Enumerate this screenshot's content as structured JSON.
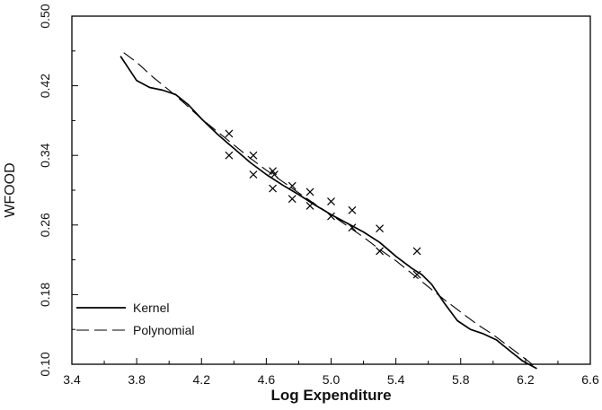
{
  "chart_data": {
    "type": "line",
    "title": "",
    "xlabel": "Log Expenditure",
    "ylabel": "WFOOD",
    "xlim": [
      3.4,
      6.6
    ],
    "ylim": [
      0.1,
      0.5
    ],
    "xticks": [
      3.4,
      3.8,
      4.2,
      4.6,
      5.0,
      5.4,
      5.8,
      6.2,
      6.6
    ],
    "xtick_labels": [
      "3.4",
      "3.8",
      "4.2",
      "4.6",
      "5.0",
      "5.4",
      "5.8",
      "6.2",
      "6.6"
    ],
    "yticks": [
      0.1,
      0.18,
      0.26,
      0.34,
      0.42,
      0.5
    ],
    "ytick_labels": [
      "0.10",
      "0.18",
      "0.26",
      "0.34",
      "0.42",
      "0.50"
    ],
    "grid": false,
    "legend_position": "bottom-left",
    "series": [
      {
        "name": "Kernel",
        "style": "solid",
        "x": [
          3.7,
          3.75,
          3.8,
          3.88,
          3.96,
          4.04,
          4.12,
          4.2,
          4.3,
          4.4,
          4.5,
          4.6,
          4.7,
          4.8,
          4.9,
          5.0,
          5.1,
          5.2,
          5.3,
          5.4,
          5.5,
          5.56,
          5.62,
          5.7,
          5.78,
          5.86,
          5.94,
          6.02,
          6.1,
          6.18,
          6.27
        ],
        "y": [
          0.454,
          0.44,
          0.426,
          0.418,
          0.415,
          0.41,
          0.398,
          0.382,
          0.364,
          0.348,
          0.332,
          0.318,
          0.306,
          0.295,
          0.283,
          0.272,
          0.262,
          0.252,
          0.24,
          0.224,
          0.21,
          0.203,
          0.192,
          0.17,
          0.15,
          0.14,
          0.135,
          0.128,
          0.116,
          0.104,
          0.095
        ]
      },
      {
        "name": "Polynomial",
        "style": "dashed",
        "x": [
          3.72,
          3.8,
          3.9,
          4.0,
          4.1,
          4.2,
          4.3,
          4.4,
          4.5,
          4.6,
          4.7,
          4.8,
          4.9,
          5.0,
          5.1,
          5.2,
          5.3,
          5.4,
          5.5,
          5.6,
          5.7,
          5.8,
          5.9,
          6.0,
          6.1,
          6.2,
          6.26
        ],
        "y": [
          0.458,
          0.447,
          0.43,
          0.415,
          0.399,
          0.382,
          0.367,
          0.352,
          0.337,
          0.323,
          0.31,
          0.297,
          0.284,
          0.272,
          0.259,
          0.246,
          0.232,
          0.219,
          0.204,
          0.189,
          0.174,
          0.16,
          0.146,
          0.134,
          0.12,
          0.106,
          0.097
        ]
      }
    ],
    "scatter": {
      "marker": "x",
      "points": [
        [
          4.37,
          0.365
        ],
        [
          4.37,
          0.34
        ],
        [
          4.52,
          0.34
        ],
        [
          4.52,
          0.318
        ],
        [
          4.64,
          0.322
        ],
        [
          4.65,
          0.318
        ],
        [
          4.64,
          0.302
        ],
        [
          4.76,
          0.305
        ],
        [
          4.76,
          0.29
        ],
        [
          4.87,
          0.298
        ],
        [
          4.87,
          0.282
        ],
        [
          5.0,
          0.287
        ],
        [
          5.0,
          0.27
        ],
        [
          5.13,
          0.277
        ],
        [
          5.13,
          0.257
        ],
        [
          5.3,
          0.256
        ],
        [
          5.3,
          0.23
        ],
        [
          5.53,
          0.23
        ],
        [
          5.53,
          0.203
        ]
      ]
    }
  }
}
